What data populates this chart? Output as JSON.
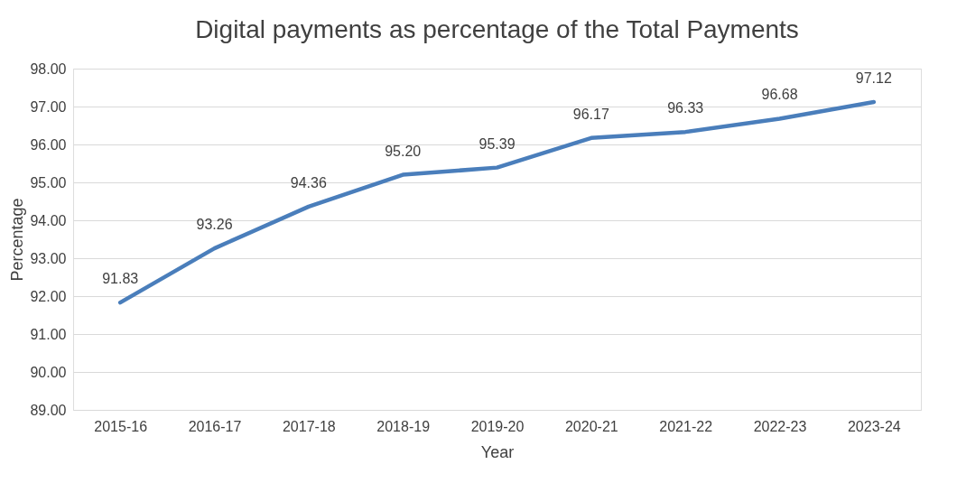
{
  "chart_data": {
    "type": "line",
    "title": "Digital payments as percentage of the Total Payments",
    "xlabel": "Year",
    "ylabel": "Percentage",
    "categories": [
      "2015-16",
      "2016-17",
      "2017-18",
      "2018-19",
      "2019-20",
      "2020-21",
      "2021-22",
      "2022-23",
      "2023-24"
    ],
    "series": [
      {
        "color": "#4a7ebb",
        "values": [
          91.83,
          93.26,
          94.36,
          95.2,
          95.39,
          96.17,
          96.33,
          96.68,
          97.12
        ]
      }
    ],
    "value_labels": [
      "91.83",
      "93.26",
      "94.36",
      "95.20",
      "95.39",
      "96.17",
      "96.33",
      "96.68",
      "97.12"
    ],
    "ylim": [
      89,
      98
    ],
    "yticks": [
      {
        "value": 89,
        "label": "89.00"
      },
      {
        "value": 90,
        "label": "90.00"
      },
      {
        "value": 91,
        "label": "91.00"
      },
      {
        "value": 92,
        "label": "92.00"
      },
      {
        "value": 93,
        "label": "93.00"
      },
      {
        "value": 94,
        "label": "94.00"
      },
      {
        "value": 95,
        "label": "95.00"
      },
      {
        "value": 96,
        "label": "96.00"
      },
      {
        "value": 97,
        "label": "97.00"
      },
      {
        "value": 98,
        "label": "98.00"
      }
    ],
    "grid": "y",
    "legend": false,
    "marker": "none",
    "line_style": "solid"
  }
}
